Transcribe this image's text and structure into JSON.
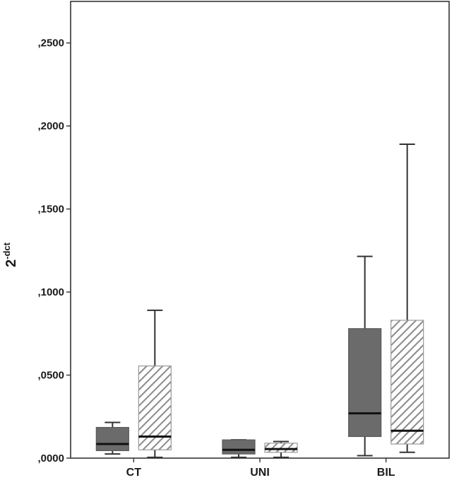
{
  "chart_data": {
    "type": "boxplot",
    "title": "",
    "ylabel": {
      "base": "2",
      "superscript": "-dct"
    },
    "xlabel": "",
    "categories": [
      "CT",
      "UNI",
      "BIL"
    ],
    "ylim": [
      0,
      0.275
    ],
    "yticks": [
      {
        "value": 0.0,
        "label": ",0000"
      },
      {
        "value": 0.05,
        "label": ",0500"
      },
      {
        "value": 0.1,
        "label": ",1000"
      },
      {
        "value": 0.15,
        "label": ",1500"
      },
      {
        "value": 0.2,
        "label": ",2000"
      },
      {
        "value": 0.25,
        "label": ",2500"
      }
    ],
    "grid": false,
    "series": [
      {
        "style": "solid",
        "color": "#6b6b6b",
        "boxes": [
          {
            "category": "CT",
            "whisker_low": 0.0025,
            "q1": 0.0045,
            "median": 0.0085,
            "q3": 0.0185,
            "whisker_high": 0.0215
          },
          {
            "category": "UNI",
            "whisker_low": 0.0005,
            "q1": 0.0025,
            "median": 0.005,
            "q3": 0.011,
            "whisker_high": 0.011
          },
          {
            "category": "BIL",
            "whisker_low": 0.0015,
            "q1": 0.013,
            "median": 0.027,
            "q3": 0.078,
            "whisker_high": 0.1215
          }
        ]
      },
      {
        "style": "hatched",
        "color": "#8a8a8a",
        "boxes": [
          {
            "category": "CT",
            "whisker_low": 0.0005,
            "q1": 0.005,
            "median": 0.013,
            "q3": 0.0555,
            "whisker_high": 0.089
          },
          {
            "category": "UNI",
            "whisker_low": 0.0005,
            "q1": 0.0035,
            "median": 0.0055,
            "q3": 0.009,
            "whisker_high": 0.01
          },
          {
            "category": "BIL",
            "whisker_low": 0.0035,
            "q1": 0.0085,
            "median": 0.0165,
            "q3": 0.083,
            "whisker_high": 0.189
          }
        ]
      }
    ]
  }
}
